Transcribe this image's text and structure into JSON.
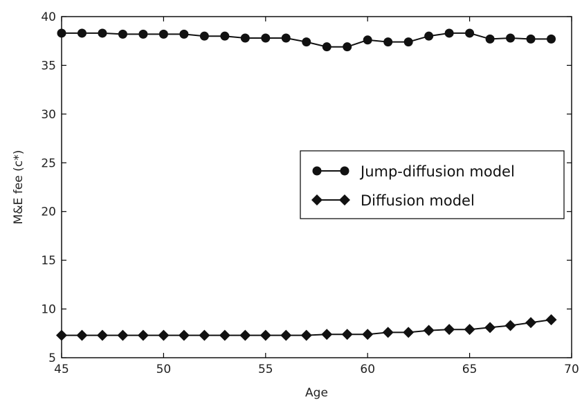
{
  "chart_data": {
    "type": "line",
    "xlabel": "Age",
    "ylabel": "M&E fee (c*)",
    "xlim": [
      45,
      70
    ],
    "ylim": [
      5,
      40
    ],
    "xticks": [
      45,
      50,
      55,
      60,
      65,
      70
    ],
    "yticks": [
      5,
      10,
      15,
      20,
      25,
      30,
      35,
      40
    ],
    "grid": false,
    "legend_position": "center-right",
    "x": [
      45,
      46,
      47,
      48,
      49,
      50,
      51,
      52,
      53,
      54,
      55,
      56,
      57,
      58,
      59,
      60,
      61,
      62,
      63,
      64,
      65,
      66,
      67,
      68,
      69
    ],
    "series": [
      {
        "name": "Jump-diffusion model",
        "marker": "circle",
        "color": "#111111",
        "values": [
          38.3,
          38.3,
          38.3,
          38.2,
          38.2,
          38.2,
          38.2,
          38.0,
          38.0,
          37.8,
          37.8,
          37.8,
          37.4,
          36.9,
          36.9,
          37.6,
          37.4,
          37.4,
          38.0,
          38.3,
          38.3,
          37.7,
          37.8,
          37.7,
          37.7
        ]
      },
      {
        "name": "Diffusion model",
        "marker": "diamond",
        "color": "#111111",
        "values": [
          7.3,
          7.3,
          7.3,
          7.3,
          7.3,
          7.3,
          7.3,
          7.3,
          7.3,
          7.3,
          7.3,
          7.3,
          7.3,
          7.4,
          7.4,
          7.4,
          7.6,
          7.6,
          7.8,
          7.9,
          7.9,
          8.1,
          8.3,
          8.6,
          8.9
        ]
      }
    ]
  }
}
